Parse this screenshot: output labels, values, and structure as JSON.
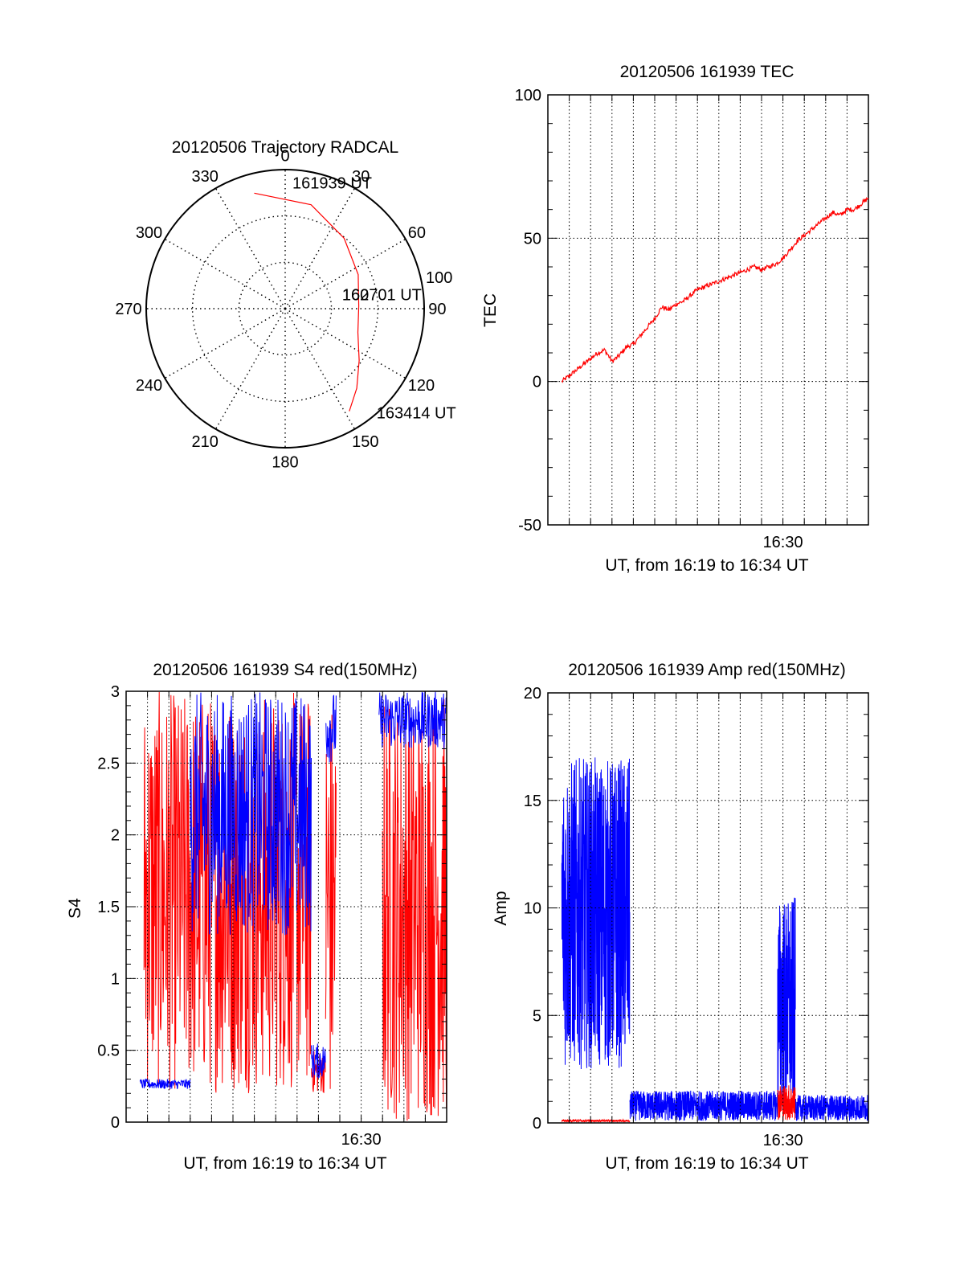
{
  "colors": {
    "red": "#ff0000",
    "blue": "#0000ff",
    "axis": "#000000",
    "grid": "#000000"
  },
  "chart_data": [
    {
      "id": "trajectory",
      "type": "polar",
      "title": "20120506 Trajectory RADCAL",
      "angle_labels": [
        "0",
        "30",
        "60",
        "90",
        "120",
        "150",
        "180",
        "210",
        "240",
        "270",
        "300",
        "330"
      ],
      "radius_label": "100",
      "rmax": 100,
      "grid_rings": [
        33.3,
        66.7
      ],
      "track": {
        "color": "red",
        "points": [
          {
            "az": 345,
            "r": 86
          },
          {
            "az": 14,
            "r": 77
          },
          {
            "az": 40,
            "r": 66
          },
          {
            "az": 65,
            "r": 58
          },
          {
            "az": 88,
            "r": 53
          },
          {
            "az": 108,
            "r": 55
          },
          {
            "az": 125,
            "r": 65
          },
          {
            "az": 138,
            "r": 77
          },
          {
            "az": 148,
            "r": 87
          }
        ]
      },
      "annotations": [
        {
          "text": "161939 UT",
          "az": 10,
          "r": 90
        },
        {
          "text": "162701 UT",
          "az": 79,
          "r": 50
        },
        {
          "text": "163414 UT",
          "az": 138,
          "r": 100
        }
      ],
      "overlay_text": "160"
    },
    {
      "id": "tec",
      "type": "line",
      "title": "20120506 161939 TEC",
      "ylabel": "TEC",
      "xlabel": "UT, from 16:19 to 16:34 UT",
      "x_range": [
        "16:19",
        "16:34"
      ],
      "x_tick_labels": [
        {
          "t": "16:30",
          "label": "16:30"
        }
      ],
      "ylim": [
        -50,
        100
      ],
      "y_ticks": [
        -50,
        0,
        50,
        100
      ],
      "grid": true,
      "series": [
        {
          "color": "red",
          "x": [
            "16:19:39",
            "16:20:00",
            "16:20:20",
            "16:20:40",
            "16:21:00",
            "16:21:20",
            "16:21:40",
            "16:22:00",
            "16:22:20",
            "16:22:40",
            "16:23:00",
            "16:23:20",
            "16:23:40",
            "16:24:00",
            "16:24:20",
            "16:24:40",
            "16:25:00",
            "16:25:20",
            "16:25:40",
            "16:26:00",
            "16:26:20",
            "16:26:40",
            "16:27:00",
            "16:27:20",
            "16:27:40",
            "16:28:00",
            "16:28:20",
            "16:28:40",
            "16:29:00",
            "16:29:20",
            "16:29:40",
            "16:30:00",
            "16:30:20",
            "16:30:40",
            "16:31:00",
            "16:31:20",
            "16:31:40",
            "16:32:00",
            "16:32:20",
            "16:32:40",
            "16:33:00",
            "16:33:20",
            "16:33:40",
            "16:34:00"
          ],
          "values": [
            0,
            2,
            4,
            6,
            8,
            10,
            11,
            7,
            9,
            12,
            13,
            16,
            19,
            22,
            26,
            25,
            27,
            28,
            30,
            32,
            33,
            34,
            35,
            36,
            37,
            38,
            39,
            40,
            39,
            40,
            41,
            43,
            46,
            49,
            51,
            53,
            55,
            57,
            59,
            58,
            60,
            60,
            62,
            64
          ]
        }
      ]
    },
    {
      "id": "s4",
      "type": "line",
      "title": "20120506 161939 S4 red(150MHz)",
      "ylabel": "S4",
      "xlabel": "UT, from 16:19 to 16:34 UT",
      "x_range": [
        "16:19",
        "16:34"
      ],
      "x_tick_labels": [
        {
          "t": "16:30",
          "label": "16:30"
        }
      ],
      "ylim": [
        0,
        3
      ],
      "y_ticks": [
        "0",
        "0.5",
        "1",
        "1.5",
        "2",
        "2.5",
        "3"
      ],
      "grid": true,
      "series": [
        {
          "color": "red",
          "description_of_envelope": false,
          "segments": [
            {
              "start": "16:19:50",
              "end": "16:27:40",
              "low": 0.2,
              "high": 3.0
            },
            {
              "start": "16:27:40",
              "end": "16:28:20",
              "low": 0.2,
              "high": 0.5
            },
            {
              "start": "16:28:20",
              "end": "16:28:50",
              "low": 0.0,
              "high": 3.0
            },
            {
              "start": "16:28:50",
              "end": "16:31:00",
              "low": 0.0,
              "high": 0.0
            },
            {
              "start": "16:31:00",
              "end": "16:34:00",
              "low": 0.0,
              "high": 3.0
            }
          ]
        },
        {
          "color": "blue",
          "segments": [
            {
              "start": "16:19:39",
              "end": "16:22:00",
              "low": 0.23,
              "high": 0.3
            },
            {
              "start": "16:22:00",
              "end": "16:27:40",
              "low": 1.3,
              "high": 3.0
            },
            {
              "start": "16:27:40",
              "end": "16:28:20",
              "low": 0.3,
              "high": 0.55
            },
            {
              "start": "16:28:20",
              "end": "16:28:50",
              "low": 2.5,
              "high": 3.0
            },
            {
              "start": "16:30:50",
              "end": "16:34:00",
              "low": 2.6,
              "high": 3.0
            }
          ]
        }
      ]
    },
    {
      "id": "amp",
      "type": "line",
      "title": "20120506 161939 Amp red(150MHz)",
      "ylabel": "Amp",
      "xlabel": "UT, from 16:19 to 16:34 UT",
      "x_range": [
        "16:19",
        "16:34"
      ],
      "x_tick_labels": [
        {
          "t": "16:30",
          "label": "16:30"
        }
      ],
      "ylim": [
        0,
        20
      ],
      "y_ticks": [
        0,
        5,
        10,
        15,
        20
      ],
      "grid": true,
      "series": [
        {
          "color": "blue",
          "segments": [
            {
              "start": "16:19:39",
              "end": "16:22:50",
              "low": 2.5,
              "high": 17.0
            },
            {
              "start": "16:22:50",
              "end": "16:29:45",
              "low": 0.1,
              "high": 1.5
            },
            {
              "start": "16:29:45",
              "end": "16:30:35",
              "low": 0.3,
              "high": 10.5
            },
            {
              "start": "16:30:35",
              "end": "16:34:00",
              "low": 0.1,
              "high": 1.3
            }
          ]
        },
        {
          "color": "red",
          "segments": [
            {
              "start": "16:19:39",
              "end": "16:22:50",
              "low": 0.05,
              "high": 0.15
            },
            {
              "start": "16:29:45",
              "end": "16:30:35",
              "low": 0.1,
              "high": 1.8
            }
          ]
        }
      ]
    }
  ]
}
